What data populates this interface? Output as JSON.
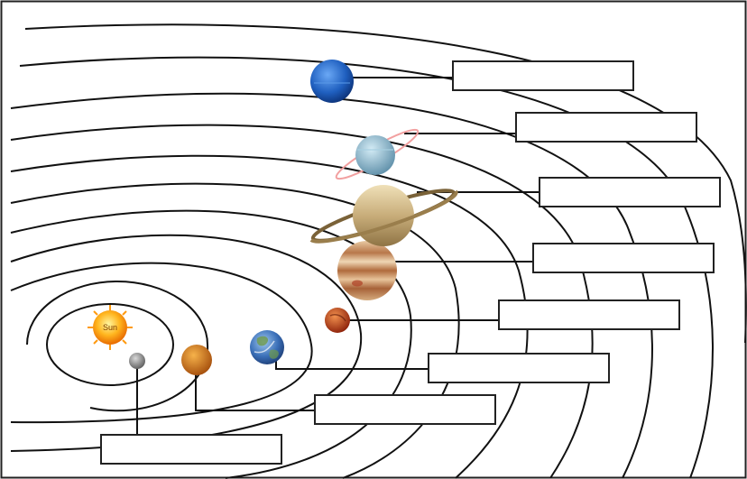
{
  "diagram": {
    "sun": {
      "label": "Sun"
    },
    "planets": [
      {
        "id": "mercury",
        "icon": "mercury-icon",
        "color": "#8e8e8e"
      },
      {
        "id": "venus",
        "icon": "venus-icon",
        "color": "#d9781f"
      },
      {
        "id": "earth",
        "icon": "earth-icon",
        "color": "#3a6fb8"
      },
      {
        "id": "mars",
        "icon": "mars-icon",
        "color": "#c9381a"
      },
      {
        "id": "jupiter",
        "icon": "jupiter-icon",
        "color": "#c98a55"
      },
      {
        "id": "saturn",
        "icon": "saturn-icon",
        "color": "#c8ad7a"
      },
      {
        "id": "uranus",
        "icon": "uranus-icon",
        "color": "#7fb2cc"
      },
      {
        "id": "neptune",
        "icon": "neptune-icon",
        "color": "#1f5fbf"
      }
    ],
    "label_boxes": [
      {
        "for": "mercury",
        "value": ""
      },
      {
        "for": "venus",
        "value": ""
      },
      {
        "for": "earth",
        "value": ""
      },
      {
        "for": "mars",
        "value": ""
      },
      {
        "for": "jupiter",
        "value": ""
      },
      {
        "for": "saturn",
        "value": ""
      },
      {
        "for": "uranus",
        "value": ""
      },
      {
        "for": "neptune",
        "value": ""
      }
    ]
  }
}
